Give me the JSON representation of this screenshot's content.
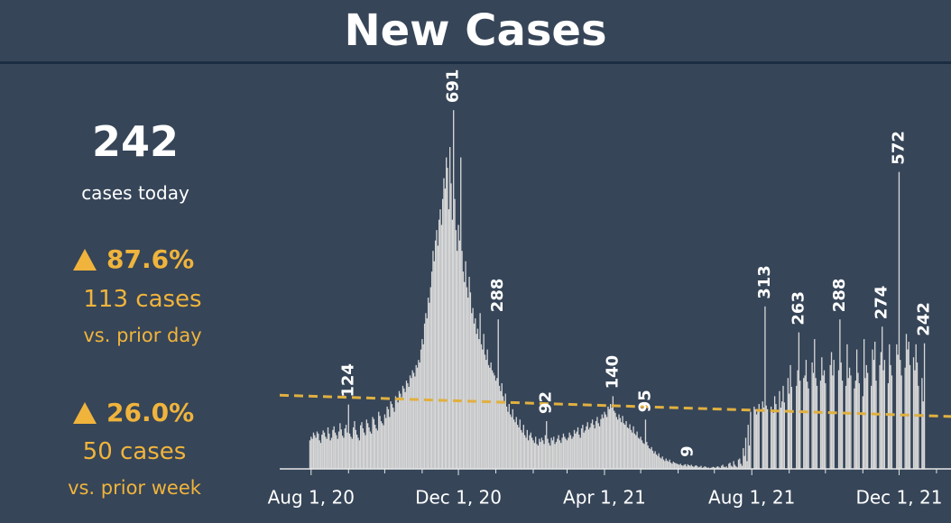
{
  "title": "New Cases",
  "summary": {
    "value": "242",
    "caption": "cases today"
  },
  "changes": [
    {
      "percent": "87.6%",
      "delta": "113 cases",
      "basis": "vs. prior day"
    },
    {
      "percent": "26.0%",
      "delta": "50 cases",
      "basis": "vs. prior week"
    }
  ],
  "chart_data": {
    "type": "bar",
    "color": "#d9d9d9",
    "xlim": [
      "2020-07-06",
      "2022-01-13"
    ],
    "ylim": [
      0,
      700
    ],
    "xticks": [
      {
        "value": "2020-08-01",
        "label": "Aug 1, 20"
      },
      {
        "value": "2020-12-01",
        "label": "Dec 1, 20"
      },
      {
        "value": "2021-04-01",
        "label": "Apr 1, 21"
      },
      {
        "value": "2021-08-01",
        "label": "Aug 1, 21"
      },
      {
        "value": "2021-12-01",
        "label": "Dec 1, 21"
      }
    ],
    "xminorticks": [
      "2020-09-01",
      "2020-10-01",
      "2020-11-01",
      "2021-01-01",
      "2021-02-01",
      "2021-03-01",
      "2021-05-01",
      "2021-06-01",
      "2021-07-01",
      "2021-09-01",
      "2021-10-01",
      "2021-11-01",
      "2022-01-01"
    ],
    "trendline": {
      "color": "#e0b040",
      "x": [
        "2020-07-06",
        "2022-01-13"
      ],
      "values": [
        142,
        101
      ]
    },
    "label_dates": [
      "2020-09-01",
      "2020-11-27",
      "2021-01-03",
      "2021-02-12",
      "2021-04-08",
      "2021-05-05",
      "2021-06-09",
      "2021-08-12",
      "2021-09-09",
      "2021-10-13",
      "2021-11-17",
      "2021-12-01",
      "2021-12-22"
    ],
    "x": [
      "2020-07-31",
      "2020-08-01",
      "2020-08-02",
      "2020-08-03",
      "2020-08-04",
      "2020-08-05",
      "2020-08-06",
      "2020-08-07",
      "2020-08-08",
      "2020-08-09",
      "2020-08-10",
      "2020-08-11",
      "2020-08-12",
      "2020-08-13",
      "2020-08-14",
      "2020-08-15",
      "2020-08-16",
      "2020-08-17",
      "2020-08-18",
      "2020-08-19",
      "2020-08-20",
      "2020-08-21",
      "2020-08-22",
      "2020-08-23",
      "2020-08-24",
      "2020-08-25",
      "2020-08-26",
      "2020-08-27",
      "2020-08-28",
      "2020-08-29",
      "2020-08-30",
      "2020-08-31",
      "2020-09-01",
      "2020-09-02",
      "2020-09-03",
      "2020-09-04",
      "2020-09-05",
      "2020-09-06",
      "2020-09-07",
      "2020-09-08",
      "2020-09-09",
      "2020-09-10",
      "2020-09-11",
      "2020-09-12",
      "2020-09-13",
      "2020-09-14",
      "2020-09-15",
      "2020-09-16",
      "2020-09-17",
      "2020-09-18",
      "2020-09-19",
      "2020-09-20",
      "2020-09-21",
      "2020-09-22",
      "2020-09-23",
      "2020-09-24",
      "2020-09-25",
      "2020-09-26",
      "2020-09-27",
      "2020-09-28",
      "2020-09-29",
      "2020-09-30",
      "2020-10-01",
      "2020-10-02",
      "2020-10-03",
      "2020-10-04",
      "2020-10-05",
      "2020-10-06",
      "2020-10-07",
      "2020-10-08",
      "2020-10-09",
      "2020-10-10",
      "2020-10-11",
      "2020-10-12",
      "2020-10-13",
      "2020-10-14",
      "2020-10-15",
      "2020-10-16",
      "2020-10-17",
      "2020-10-18",
      "2020-10-19",
      "2020-10-20",
      "2020-10-21",
      "2020-10-22",
      "2020-10-23",
      "2020-10-24",
      "2020-10-25",
      "2020-10-26",
      "2020-10-27",
      "2020-10-28",
      "2020-10-29",
      "2020-10-30",
      "2020-10-31",
      "2020-11-01",
      "2020-11-02",
      "2020-11-03",
      "2020-11-04",
      "2020-11-05",
      "2020-11-06",
      "2020-11-07",
      "2020-11-08",
      "2020-11-09",
      "2020-11-10",
      "2020-11-11",
      "2020-11-12",
      "2020-11-13",
      "2020-11-14",
      "2020-11-15",
      "2020-11-16",
      "2020-11-17",
      "2020-11-18",
      "2020-11-19",
      "2020-11-20",
      "2020-11-21",
      "2020-11-22",
      "2020-11-23",
      "2020-11-24",
      "2020-11-25",
      "2020-11-26",
      "2020-11-27",
      "2020-11-28",
      "2020-11-29",
      "2020-11-30",
      "2020-12-01",
      "2020-12-02",
      "2020-12-03",
      "2020-12-04",
      "2020-12-05",
      "2020-12-06",
      "2020-12-07",
      "2020-12-08",
      "2020-12-09",
      "2020-12-10",
      "2020-12-11",
      "2020-12-12",
      "2020-12-13",
      "2020-12-14",
      "2020-12-15",
      "2020-12-16",
      "2020-12-17",
      "2020-12-18",
      "2020-12-19",
      "2020-12-20",
      "2020-12-21",
      "2020-12-22",
      "2020-12-23",
      "2020-12-24",
      "2020-12-25",
      "2020-12-26",
      "2020-12-27",
      "2020-12-28",
      "2020-12-29",
      "2020-12-30",
      "2020-12-31",
      "2021-01-01",
      "2021-01-02",
      "2021-01-03",
      "2021-01-04",
      "2021-01-05",
      "2021-01-06",
      "2021-01-07",
      "2021-01-08",
      "2021-01-09",
      "2021-01-10",
      "2021-01-11",
      "2021-01-12",
      "2021-01-13",
      "2021-01-14",
      "2021-01-15",
      "2021-01-16",
      "2021-01-17",
      "2021-01-18",
      "2021-01-19",
      "2021-01-20",
      "2021-01-21",
      "2021-01-22",
      "2021-01-23",
      "2021-01-24",
      "2021-01-25",
      "2021-01-26",
      "2021-01-27",
      "2021-01-28",
      "2021-01-29",
      "2021-01-30",
      "2021-01-31",
      "2021-02-01",
      "2021-02-02",
      "2021-02-03",
      "2021-02-04",
      "2021-02-05",
      "2021-02-06",
      "2021-02-07",
      "2021-02-08",
      "2021-02-09",
      "2021-02-10",
      "2021-02-11",
      "2021-02-12",
      "2021-02-13",
      "2021-02-14",
      "2021-02-15",
      "2021-02-16",
      "2021-02-17",
      "2021-02-18",
      "2021-02-19",
      "2021-02-20",
      "2021-02-21",
      "2021-02-22",
      "2021-02-23",
      "2021-02-24",
      "2021-02-25",
      "2021-02-26",
      "2021-02-27",
      "2021-02-28",
      "2021-03-01",
      "2021-03-02",
      "2021-03-03",
      "2021-03-04",
      "2021-03-05",
      "2021-03-06",
      "2021-03-07",
      "2021-03-08",
      "2021-03-09",
      "2021-03-10",
      "2021-03-11",
      "2021-03-12",
      "2021-03-13",
      "2021-03-14",
      "2021-03-15",
      "2021-03-16",
      "2021-03-17",
      "2021-03-18",
      "2021-03-19",
      "2021-03-20",
      "2021-03-21",
      "2021-03-22",
      "2021-03-23",
      "2021-03-24",
      "2021-03-25",
      "2021-03-26",
      "2021-03-27",
      "2021-03-28",
      "2021-03-29",
      "2021-03-30",
      "2021-03-31",
      "2021-04-01",
      "2021-04-02",
      "2021-04-03",
      "2021-04-04",
      "2021-04-05",
      "2021-04-06",
      "2021-04-07",
      "2021-04-08",
      "2021-04-09",
      "2021-04-10",
      "2021-04-11",
      "2021-04-12",
      "2021-04-13",
      "2021-04-14",
      "2021-04-15",
      "2021-04-16",
      "2021-04-17",
      "2021-04-18",
      "2021-04-19",
      "2021-04-20",
      "2021-04-21",
      "2021-04-22",
      "2021-04-23",
      "2021-04-24",
      "2021-04-25",
      "2021-04-26",
      "2021-04-27",
      "2021-04-28",
      "2021-04-29",
      "2021-04-30",
      "2021-05-01",
      "2021-05-02",
      "2021-05-03",
      "2021-05-04",
      "2021-05-05",
      "2021-05-06",
      "2021-05-07",
      "2021-05-08",
      "2021-05-09",
      "2021-05-10",
      "2021-05-11",
      "2021-05-12",
      "2021-05-13",
      "2021-05-14",
      "2021-05-15",
      "2021-05-16",
      "2021-05-17",
      "2021-05-18",
      "2021-05-19",
      "2021-05-20",
      "2021-05-21",
      "2021-05-22",
      "2021-05-23",
      "2021-05-24",
      "2021-05-25",
      "2021-05-26",
      "2021-05-27",
      "2021-05-28",
      "2021-05-29",
      "2021-05-30",
      "2021-05-31",
      "2021-06-01",
      "2021-06-02",
      "2021-06-03",
      "2021-06-04",
      "2021-06-05",
      "2021-06-06",
      "2021-06-07",
      "2021-06-08",
      "2021-06-09",
      "2021-06-10",
      "2021-06-11",
      "2021-06-12",
      "2021-06-13",
      "2021-06-14",
      "2021-06-15",
      "2021-06-16",
      "2021-06-17",
      "2021-06-18",
      "2021-06-19",
      "2021-06-20",
      "2021-06-21",
      "2021-06-22",
      "2021-06-23",
      "2021-06-24",
      "2021-06-25",
      "2021-06-26",
      "2021-06-27",
      "2021-06-28",
      "2021-06-29",
      "2021-06-30",
      "2021-07-01",
      "2021-07-02",
      "2021-07-03",
      "2021-07-04",
      "2021-07-05",
      "2021-07-06",
      "2021-07-07",
      "2021-07-08",
      "2021-07-09",
      "2021-07-10",
      "2021-07-11",
      "2021-07-12",
      "2021-07-13",
      "2021-07-14",
      "2021-07-15",
      "2021-07-16",
      "2021-07-17",
      "2021-07-18",
      "2021-07-19",
      "2021-07-20",
      "2021-07-21",
      "2021-07-22",
      "2021-07-23",
      "2021-07-24",
      "2021-07-25",
      "2021-07-26",
      "2021-07-27",
      "2021-07-28",
      "2021-07-29",
      "2021-07-30",
      "2021-07-31",
      "2021-08-01",
      "2021-08-02",
      "2021-08-03",
      "2021-08-04",
      "2021-08-05",
      "2021-08-06",
      "2021-08-07",
      "2021-08-08",
      "2021-08-09",
      "2021-08-10",
      "2021-08-11",
      "2021-08-12",
      "2021-08-13",
      "2021-08-14",
      "2021-08-15",
      "2021-08-16",
      "2021-08-17",
      "2021-08-18",
      "2021-08-19",
      "2021-08-20",
      "2021-08-21",
      "2021-08-22",
      "2021-08-23",
      "2021-08-24",
      "2021-08-25",
      "2021-08-26",
      "2021-08-27",
      "2021-08-28",
      "2021-08-29",
      "2021-08-30",
      "2021-08-31",
      "2021-09-01",
      "2021-09-02",
      "2021-09-03",
      "2021-09-04",
      "2021-09-05",
      "2021-09-06",
      "2021-09-07",
      "2021-09-08",
      "2021-09-09",
      "2021-09-10",
      "2021-09-11",
      "2021-09-12",
      "2021-09-13",
      "2021-09-14",
      "2021-09-15",
      "2021-09-16",
      "2021-09-17",
      "2021-09-18",
      "2021-09-19",
      "2021-09-20",
      "2021-09-21",
      "2021-09-22",
      "2021-09-23",
      "2021-09-24",
      "2021-09-25",
      "2021-09-26",
      "2021-09-27",
      "2021-09-28",
      "2021-09-29",
      "2021-09-30",
      "2021-10-01",
      "2021-10-02",
      "2021-10-03",
      "2021-10-04",
      "2021-10-05",
      "2021-10-06",
      "2021-10-07",
      "2021-10-08",
      "2021-10-09",
      "2021-10-10",
      "2021-10-11",
      "2021-10-12",
      "2021-10-13",
      "2021-10-14",
      "2021-10-15",
      "2021-10-16",
      "2021-10-17",
      "2021-10-18",
      "2021-10-19",
      "2021-10-20",
      "2021-10-21",
      "2021-10-22",
      "2021-10-23",
      "2021-10-24",
      "2021-10-25",
      "2021-10-26",
      "2021-10-27",
      "2021-10-28",
      "2021-10-29",
      "2021-10-30",
      "2021-10-31",
      "2021-11-01",
      "2021-11-02",
      "2021-11-03",
      "2021-11-04",
      "2021-11-05",
      "2021-11-06",
      "2021-11-07",
      "2021-11-08",
      "2021-11-09",
      "2021-11-10",
      "2021-11-11",
      "2021-11-12",
      "2021-11-13",
      "2021-11-14",
      "2021-11-15",
      "2021-11-16",
      "2021-11-17",
      "2021-11-18",
      "2021-11-19",
      "2021-11-20",
      "2021-11-21",
      "2021-11-22",
      "2021-11-23",
      "2021-11-24",
      "2021-11-25",
      "2021-11-26",
      "2021-11-27",
      "2021-11-28",
      "2021-11-29",
      "2021-11-30",
      "2021-12-01",
      "2021-12-02",
      "2021-12-03",
      "2021-12-04",
      "2021-12-05",
      "2021-12-06",
      "2021-12-07",
      "2021-12-08",
      "2021-12-09",
      "2021-12-10",
      "2021-12-11",
      "2021-12-12",
      "2021-12-13",
      "2021-12-14",
      "2021-12-15",
      "2021-12-16",
      "2021-12-17",
      "2021-12-18",
      "2021-12-19",
      "2021-12-20",
      "2021-12-21",
      "2021-12-22"
    ],
    "values": [
      55,
      62,
      58,
      70,
      65,
      60,
      72,
      68,
      55,
      50,
      66,
      74,
      70,
      62,
      58,
      80,
      68,
      55,
      60,
      75,
      82,
      70,
      65,
      58,
      72,
      88,
      76,
      64,
      60,
      78,
      85,
      70,
      124,
      68,
      62,
      58,
      80,
      92,
      75,
      66,
      60,
      55,
      84,
      90,
      78,
      70,
      65,
      95,
      88,
      80,
      72,
      68,
      100,
      96,
      85,
      78,
      74,
      110,
      102,
      92,
      88,
      84,
      105,
      98,
      120,
      115,
      100,
      130,
      125,
      118,
      110,
      140,
      135,
      128,
      150,
      145,
      138,
      160,
      155,
      148,
      170,
      165,
      158,
      180,
      175,
      190,
      185,
      178,
      200,
      195,
      210,
      205,
      230,
      250,
      240,
      280,
      300,
      290,
      330,
      320,
      350,
      380,
      420,
      400,
      440,
      460,
      430,
      480,
      500,
      470,
      520,
      560,
      540,
      600,
      580,
      500,
      620,
      550,
      480,
      691,
      520,
      460,
      420,
      470,
      440,
      600,
      420,
      380,
      360,
      400,
      350,
      330,
      370,
      340,
      300,
      310,
      280,
      290,
      260,
      270,
      250,
      300,
      240,
      230,
      260,
      220,
      210,
      230,
      200,
      195,
      205,
      190,
      185,
      180,
      170,
      175,
      288,
      160,
      150,
      165,
      140,
      130,
      145,
      120,
      110,
      125,
      105,
      100,
      115,
      95,
      90,
      100,
      85,
      80,
      95,
      75,
      70,
      85,
      65,
      60,
      75,
      55,
      65,
      70,
      60,
      55,
      50,
      62,
      48,
      45,
      58,
      52,
      60,
      55,
      48,
      65,
      92,
      58,
      50,
      45,
      60,
      55,
      62,
      48,
      52,
      58,
      65,
      55,
      50,
      60,
      68,
      62,
      58,
      55,
      60,
      70,
      65,
      58,
      62,
      75,
      68,
      72,
      80,
      66,
      60,
      78,
      85,
      70,
      74,
      82,
      90,
      76,
      80,
      88,
      95,
      85,
      78,
      92,
      100,
      88,
      82,
      96,
      105,
      98,
      110,
      105,
      100,
      120,
      115,
      125,
      118,
      140,
      112,
      108,
      100,
      95,
      105,
      98,
      90,
      102,
      88,
      85,
      92,
      80,
      78,
      86,
      75,
      70,
      82,
      68,
      65,
      72,
      60,
      58,
      62,
      55,
      50,
      48,
      95,
      52,
      45,
      40,
      38,
      42,
      35,
      30,
      34,
      28,
      25,
      30,
      22,
      20,
      24,
      18,
      15,
      20,
      16,
      14,
      18,
      12,
      10,
      14,
      12,
      11,
      10,
      9,
      8,
      10,
      7,
      6,
      8,
      9,
      5,
      9,
      7,
      6,
      8,
      5,
      4,
      6,
      7,
      5,
      3,
      4,
      6,
      2,
      3,
      5,
      4,
      2,
      3,
      1,
      2,
      3,
      4,
      3,
      2,
      4,
      5,
      3,
      2,
      6,
      8,
      4,
      3,
      5,
      2,
      10,
      12,
      6,
      4,
      15,
      8,
      5,
      3,
      18,
      20,
      10,
      6,
      40,
      25,
      60,
      15,
      85,
      45,
      110,
      0,
      0,
      120,
      115,
      105,
      110,
      125,
      0,
      0,
      130,
      118,
      313,
      122,
      115,
      0,
      0,
      120,
      112,
      108,
      140,
      125,
      0,
      0,
      150,
      118,
      130,
      160,
      128,
      0,
      0,
      175,
      145,
      200,
      158,
      0,
      0,
      0,
      160,
      190,
      263,
      170,
      0,
      0,
      175,
      180,
      210,
      168,
      155,
      0,
      0,
      205,
      185,
      250,
      175,
      160,
      0,
      0,
      170,
      215,
      180,
      190,
      165,
      0,
      0,
      0,
      200,
      225,
      180,
      210,
      0,
      0,
      0,
      190,
      288,
      205,
      170,
      0,
      0,
      160,
      240,
      175,
      195,
      180,
      0,
      0,
      155,
      170,
      230,
      185,
      165,
      0,
      0,
      140,
      250,
      175,
      200,
      185,
      0,
      0,
      160,
      230,
      210,
      245,
      170,
      0,
      0,
      200,
      225,
      274,
      190,
      210,
      0,
      0,
      165,
      240,
      200,
      180,
      0,
      0,
      0,
      240,
      220,
      572,
      210,
      180,
      0,
      0,
      195,
      260,
      230,
      245,
      200,
      0,
      0,
      215,
      190,
      240,
      205,
      160,
      0,
      0,
      175,
      130,
      242
    ]
  }
}
